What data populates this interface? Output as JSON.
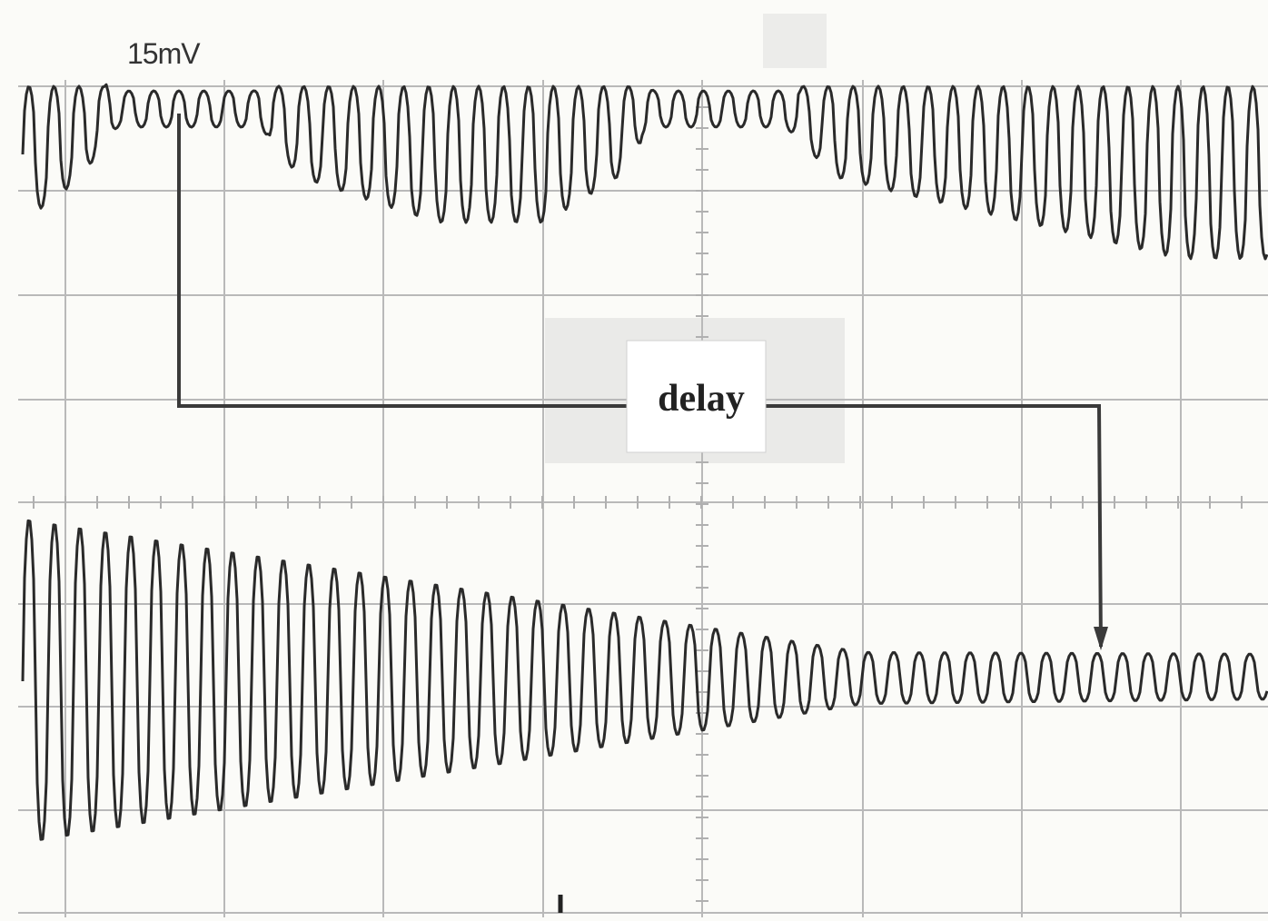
{
  "labels": {
    "scale": "15mV",
    "annotation": "delay"
  }
}
